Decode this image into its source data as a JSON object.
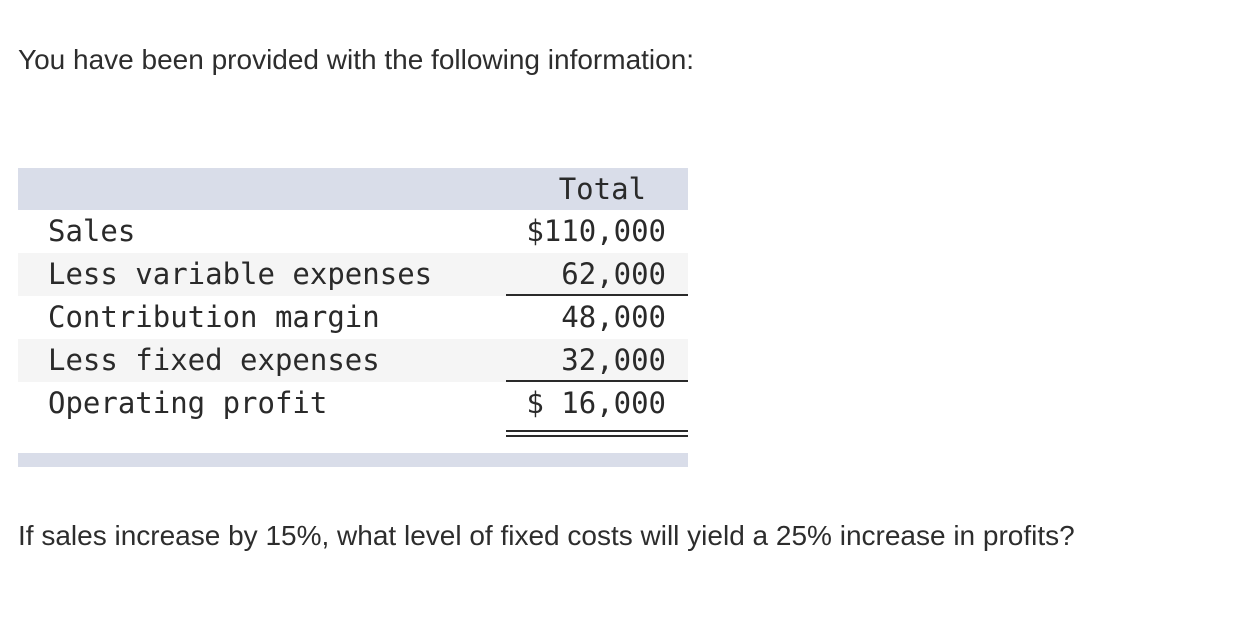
{
  "intro_text": "You have been provided with the following information:",
  "statement": {
    "column_header": "Total",
    "rows": [
      {
        "label": "Sales",
        "amount": "$110,000"
      },
      {
        "label": "Less variable expenses",
        "amount": "62,000"
      },
      {
        "label": "Contribution margin",
        "amount": "48,000"
      },
      {
        "label": "Less fixed expenses",
        "amount": "32,000"
      },
      {
        "label": "Operating profit",
        "amount": "$ 16,000"
      }
    ]
  },
  "question_text": "If sales increase by 15%, what level of fixed costs will yield a 25% increase in profits?"
}
